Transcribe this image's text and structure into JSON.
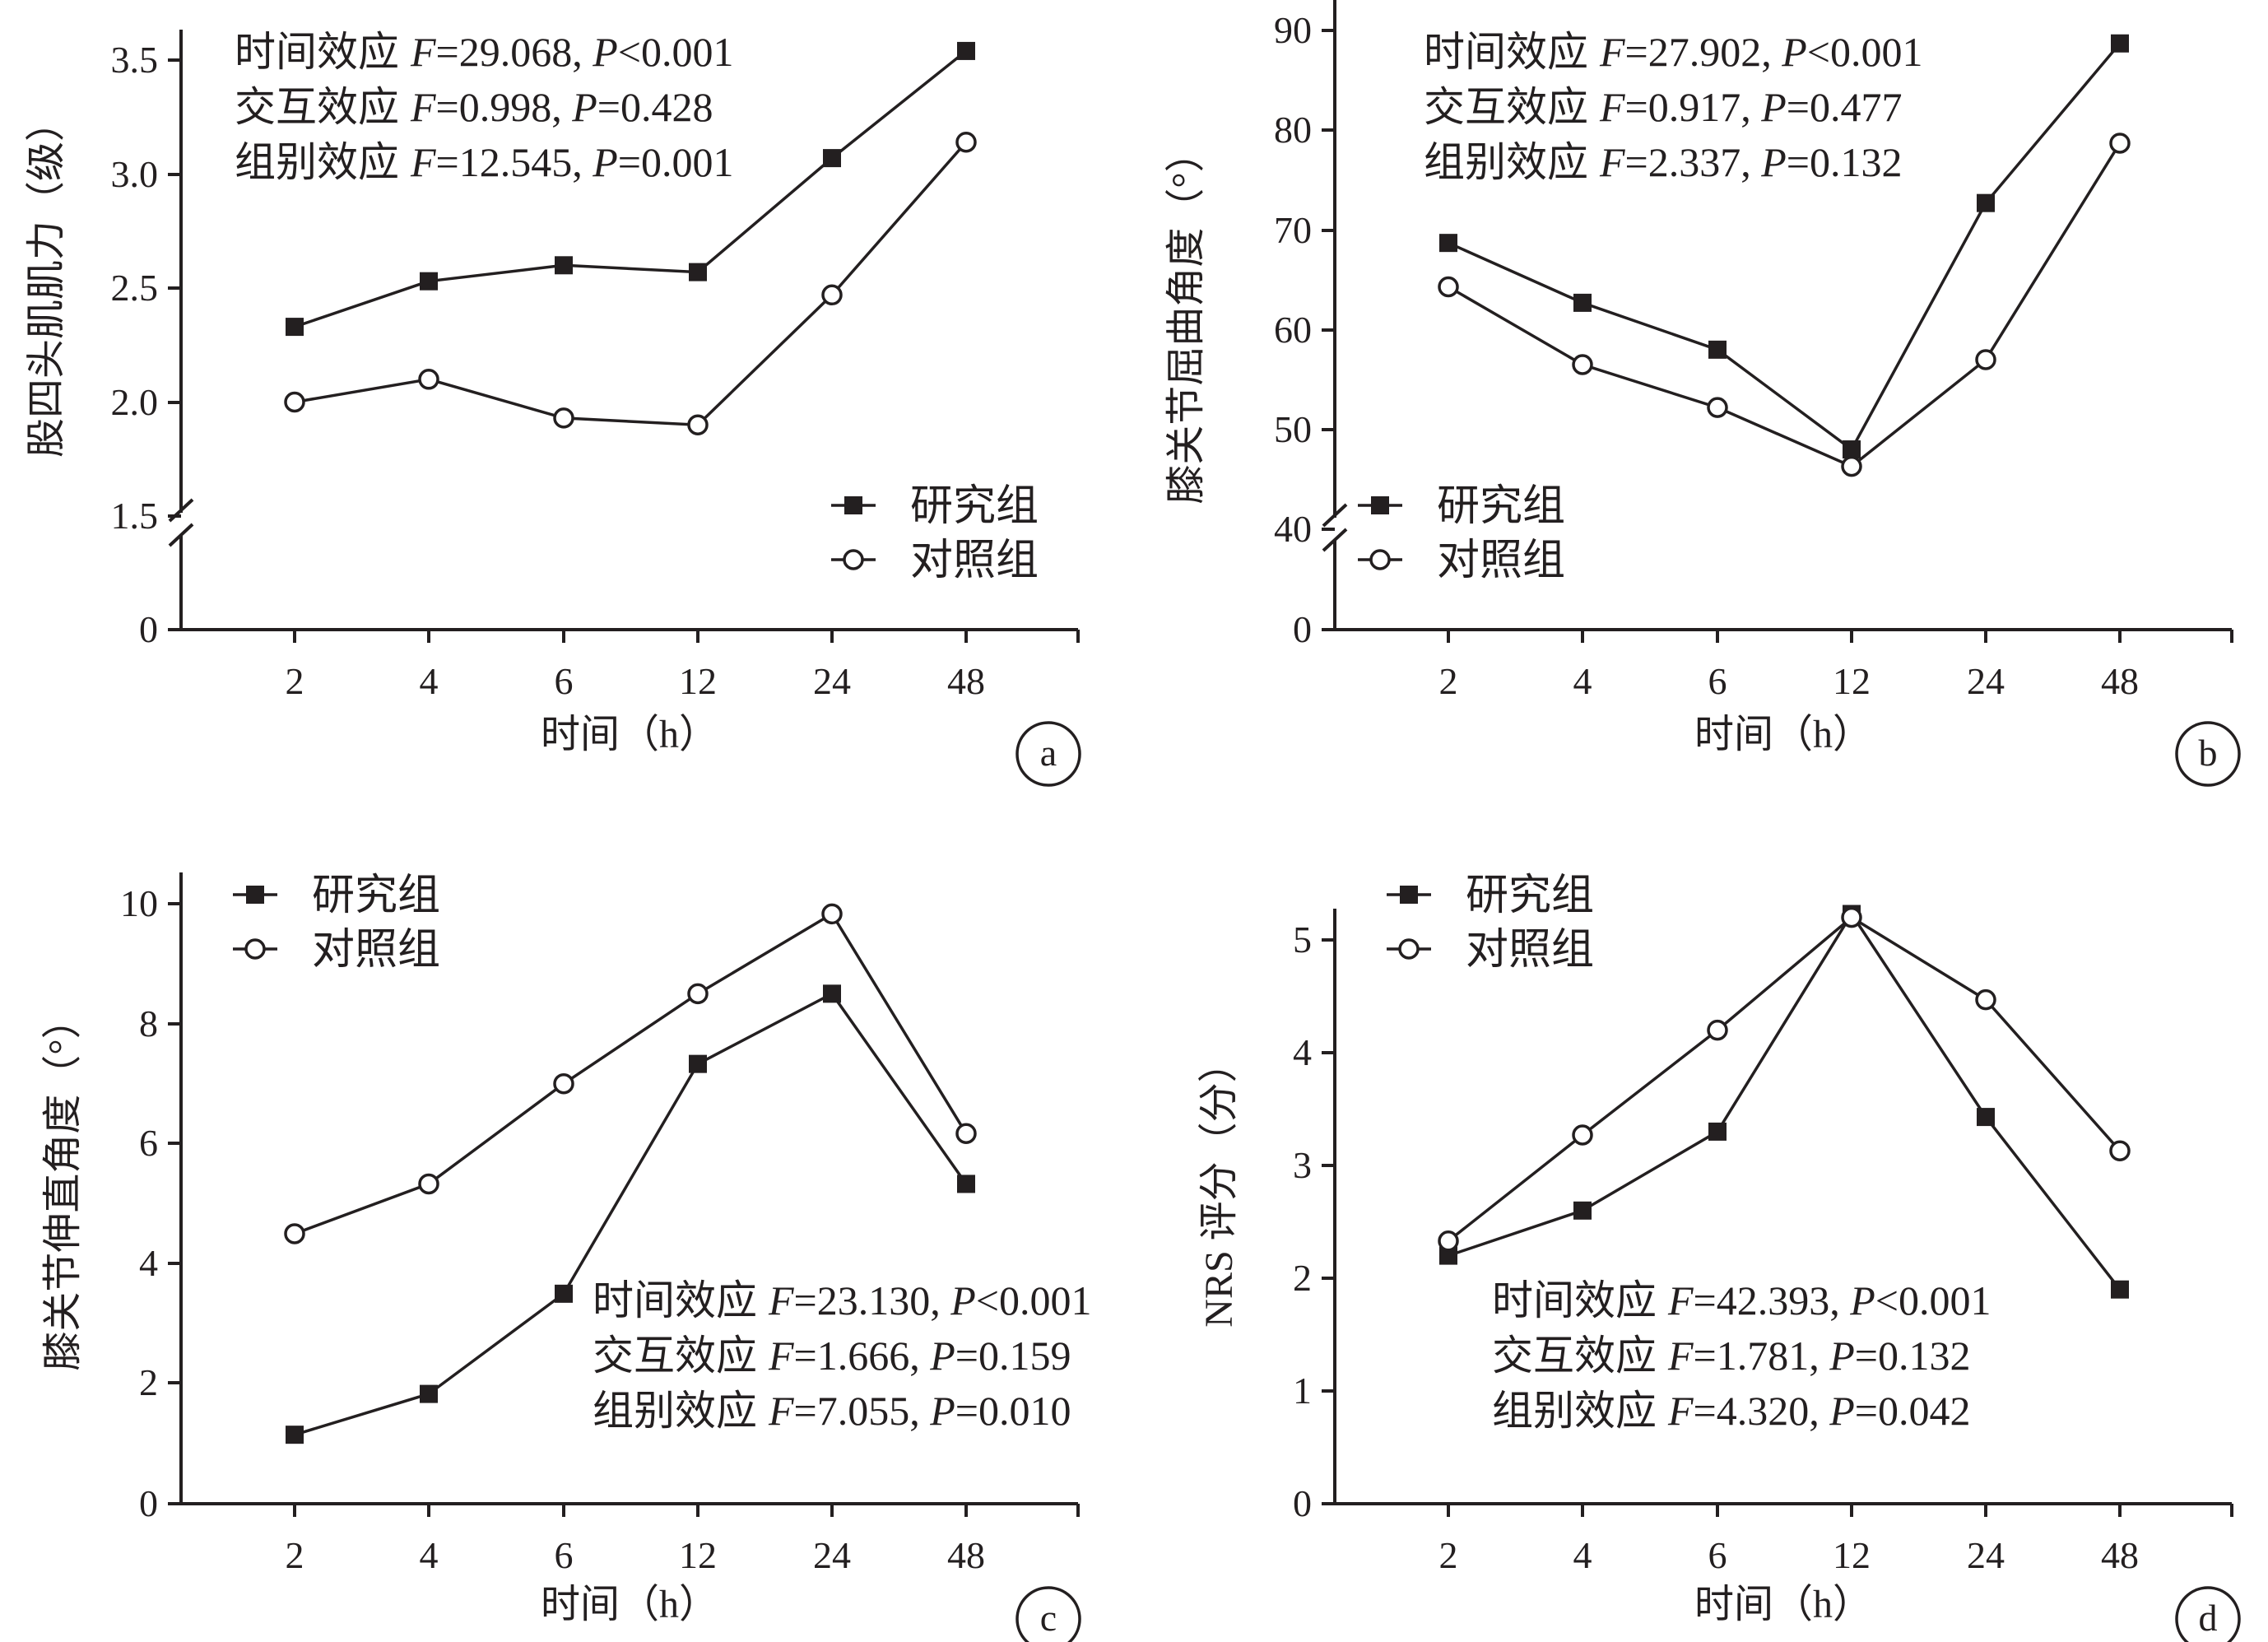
{
  "chart_data": [
    {
      "id": "a",
      "type": "line",
      "panel_label": "a",
      "xlabel": "时间（h）",
      "ylabel": "股四头肌肌力（级）",
      "categories": [
        "2",
        "4",
        "6",
        "12",
        "24",
        "48"
      ],
      "yticks": [
        "0",
        "1.5",
        "2.0",
        "2.5",
        "3.0",
        "3.5"
      ],
      "ylim": [
        1.5,
        3.75
      ],
      "y_axis_break": true,
      "series": [
        {
          "name": "研究组",
          "marker": "filled-square",
          "values": [
            2.33,
            2.53,
            2.6,
            2.57,
            3.07,
            3.54
          ]
        },
        {
          "name": "对照组",
          "marker": "open-circle",
          "values": [
            2.0,
            2.1,
            1.93,
            1.9,
            2.47,
            3.14
          ]
        }
      ],
      "legend_position": "bottom-right",
      "stats_position": "top-left",
      "stats": [
        {
          "label": "时间效应",
          "f_sym": "F",
          "f_val": "=29.068, ",
          "p_sym": "P",
          "p_val": "<0.001"
        },
        {
          "label": "交互效应",
          "f_sym": "F",
          "f_val": "=0.998, ",
          "p_sym": "P",
          "p_val": "=0.428"
        },
        {
          "label": "组别效应",
          "f_sym": "F",
          "f_val": "=12.545, ",
          "p_sym": "P",
          "p_val": "=0.001"
        }
      ]
    },
    {
      "id": "b",
      "type": "line",
      "panel_label": "b",
      "xlabel": "时间（h）",
      "ylabel": "膝关节屈曲角度（°）",
      "categories": [
        "2",
        "4",
        "6",
        "12",
        "24",
        "48"
      ],
      "yticks": [
        "0",
        "40",
        "50",
        "60",
        "70",
        "80",
        "90"
      ],
      "ylim": [
        40,
        93
      ],
      "y_axis_break": true,
      "series": [
        {
          "name": "研究组",
          "marker": "filled-square",
          "values": [
            68.7,
            62.7,
            58.0,
            48.0,
            72.7,
            88.7
          ]
        },
        {
          "name": "对照组",
          "marker": "open-circle",
          "values": [
            64.3,
            56.5,
            52.2,
            46.3,
            57.0,
            78.7
          ]
        }
      ],
      "legend_position": "bottom-left",
      "stats_position": "top-left",
      "stats": [
        {
          "label": "时间效应",
          "f_sym": "F",
          "f_val": "=27.902, ",
          "p_sym": "P",
          "p_val": "<0.001"
        },
        {
          "label": "交互效应",
          "f_sym": "F",
          "f_val": "=0.917, ",
          "p_sym": "P",
          "p_val": "=0.477"
        },
        {
          "label": "组别效应",
          "f_sym": "F",
          "f_val": "=2.337, ",
          "p_sym": "P",
          "p_val": "=0.132"
        }
      ]
    },
    {
      "id": "c",
      "type": "line",
      "panel_label": "c",
      "xlabel": "时间（h）",
      "ylabel": "膝关节伸直角度（°）",
      "categories": [
        "2",
        "4",
        "6",
        "12",
        "24",
        "48"
      ],
      "yticks": [
        "0",
        "2",
        "4",
        "6",
        "8",
        "10"
      ],
      "ylim": [
        0,
        10.5
      ],
      "y_axis_break": false,
      "series": [
        {
          "name": "研究组",
          "marker": "filled-square",
          "values": [
            1.15,
            1.83,
            3.5,
            7.33,
            8.5,
            5.33
          ]
        },
        {
          "name": "对照组",
          "marker": "open-circle",
          "values": [
            4.5,
            5.33,
            7.0,
            8.5,
            9.83,
            6.17
          ]
        }
      ],
      "legend_position": "top-left",
      "stats_position": "bottom-right",
      "stats": [
        {
          "label": "时间效应",
          "f_sym": "F",
          "f_val": "=23.130, ",
          "p_sym": "P",
          "p_val": "<0.001"
        },
        {
          "label": "交互效应",
          "f_sym": "F",
          "f_val": "=1.666, ",
          "p_sym": "P",
          "p_val": "=0.159"
        },
        {
          "label": "组别效应",
          "f_sym": "F",
          "f_val": "=7.055, ",
          "p_sym": "P",
          "p_val": "=0.010"
        }
      ]
    },
    {
      "id": "d",
      "type": "line",
      "panel_label": "d",
      "xlabel": "时间（h）",
      "ylabel": "NRS 评分（分）",
      "categories": [
        "2",
        "4",
        "6",
        "12",
        "24",
        "48"
      ],
      "yticks": [
        "0",
        "1",
        "2",
        "3",
        "4",
        "5"
      ],
      "ylim": [
        0,
        5.5
      ],
      "y_axis_break": false,
      "series": [
        {
          "name": "研究组",
          "marker": "filled-square",
          "values": [
            2.2,
            2.6,
            3.3,
            5.23,
            3.43,
            1.9
          ]
        },
        {
          "name": "对照组",
          "marker": "open-circle",
          "values": [
            2.33,
            3.27,
            4.2,
            5.2,
            4.47,
            3.13
          ]
        }
      ],
      "legend_position": "top-left",
      "stats_position": "bottom-right",
      "stats": [
        {
          "label": "时间效应",
          "f_sym": "F",
          "f_val": "=42.393, ",
          "p_sym": "P",
          "p_val": "<0.001"
        },
        {
          "label": "交互效应",
          "f_sym": "F",
          "f_val": "=1.781, ",
          "p_sym": "P",
          "p_val": "=0.132"
        },
        {
          "label": "组别效应",
          "f_sym": "F",
          "f_val": "=4.320, ",
          "p_sym": "P",
          "p_val": "=0.042"
        }
      ]
    }
  ]
}
